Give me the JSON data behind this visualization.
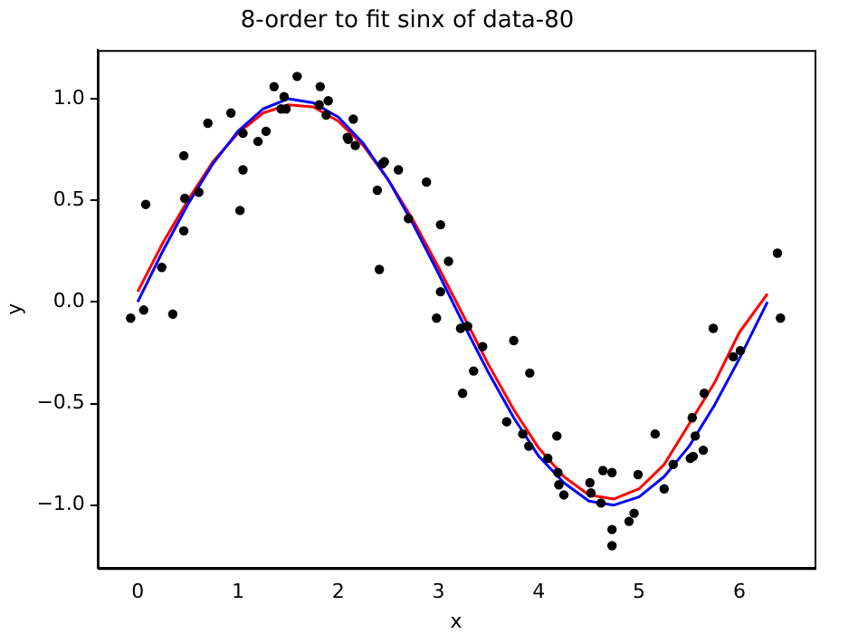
{
  "chart_data": {
    "type": "scatter",
    "title": "8-order to fit sinx of data-80",
    "xlabel": "x",
    "ylabel": "y",
    "xlim": [
      -0.4,
      6.75
    ],
    "ylim": [
      -1.31,
      1.24
    ],
    "xticks": [
      0,
      1,
      2,
      3,
      4,
      5,
      6
    ],
    "yticks": [
      {
        "value": -1,
        "label": "−1.0"
      },
      {
        "value": -0.5,
        "label": "−0.5"
      },
      {
        "value": 0,
        "label": "0.0"
      },
      {
        "value": 0.5,
        "label": "0.5"
      },
      {
        "value": 1,
        "label": "1.0"
      }
    ],
    "grid": false,
    "legend": false,
    "series": [
      {
        "marker": "circle",
        "color": "#000000",
        "x": [
          -0.07,
          0.06,
          0.08,
          0.24,
          0.35,
          0.46,
          0.46,
          0.47,
          0.61,
          0.7,
          0.93,
          1.02,
          1.05,
          1.05,
          1.2,
          1.28,
          1.36,
          1.43,
          1.46,
          1.48,
          1.59,
          1.81,
          1.82,
          1.88,
          1.9,
          2.09,
          2.1,
          2.15,
          2.17,
          2.39,
          2.41,
          2.44,
          2.46,
          2.6,
          2.7,
          2.88,
          2.98,
          3.02,
          3.02,
          3.1,
          3.22,
          3.29,
          3.35,
          3.44,
          3.24,
          3.68,
          3.75,
          3.84,
          3.9,
          3.91,
          4.09,
          4.18,
          4.19,
          4.2,
          4.25,
          4.51,
          4.52,
          4.62,
          4.64,
          4.73,
          4.73,
          4.73,
          4.9,
          4.95,
          4.99,
          5.16,
          5.25,
          5.34,
          5.51,
          5.53,
          5.54,
          5.56,
          5.64,
          5.65,
          5.74,
          5.94,
          6.01,
          6.38,
          6.41
        ],
        "values": [
          -0.08,
          -0.04,
          0.48,
          0.17,
          -0.06,
          0.72,
          0.35,
          0.51,
          0.54,
          0.88,
          0.93,
          0.45,
          0.65,
          0.83,
          0.79,
          0.84,
          1.06,
          0.95,
          1.01,
          0.95,
          1.11,
          0.97,
          1.06,
          0.92,
          0.99,
          0.81,
          0.8,
          0.9,
          0.77,
          0.55,
          0.16,
          0.68,
          0.69,
          0.65,
          0.41,
          0.59,
          -0.08,
          0.05,
          0.38,
          0.2,
          -0.13,
          -0.12,
          -0.34,
          -0.22,
          -0.45,
          -0.59,
          -0.19,
          -0.65,
          -0.71,
          -0.35,
          -0.77,
          -0.66,
          -0.84,
          -0.9,
          -0.95,
          -0.89,
          -0.94,
          -0.99,
          -0.83,
          -0.84,
          -1.12,
          -1.2,
          -1.08,
          -1.04,
          -0.85,
          -0.65,
          -0.92,
          -0.8,
          -0.77,
          -0.57,
          -0.76,
          -0.66,
          -0.73,
          -0.45,
          -0.13,
          -0.27,
          -0.24,
          0.24,
          -0.08
        ]
      },
      {
        "type": "line",
        "marker": "none",
        "color": "#0000ff",
        "x": [
          0,
          0.25,
          0.5,
          0.75,
          1,
          1.25,
          1.5,
          1.75,
          2,
          2.25,
          2.5,
          2.75,
          3,
          3.25,
          3.5,
          3.75,
          4,
          4.25,
          4.5,
          4.75,
          5,
          5.25,
          5.5,
          5.75,
          6,
          6.28
        ],
        "values": [
          0,
          0.25,
          0.48,
          0.68,
          0.84,
          0.95,
          1.0,
          0.98,
          0.91,
          0.78,
          0.6,
          0.38,
          0.14,
          -0.11,
          -0.35,
          -0.57,
          -0.76,
          -0.89,
          -0.98,
          -1.0,
          -0.96,
          -0.86,
          -0.71,
          -0.51,
          -0.28,
          0.0
        ]
      },
      {
        "type": "line",
        "marker": "none",
        "color": "#ff0000",
        "x": [
          0,
          0.25,
          0.5,
          0.75,
          1,
          1.25,
          1.5,
          1.75,
          2,
          2.25,
          2.5,
          2.75,
          3,
          3.25,
          3.5,
          3.75,
          4,
          4.25,
          4.5,
          4.75,
          5,
          5.25,
          5.5,
          5.75,
          6,
          6.28
        ],
        "values": [
          0.05,
          0.29,
          0.5,
          0.69,
          0.83,
          0.93,
          0.97,
          0.96,
          0.89,
          0.77,
          0.6,
          0.4,
          0.17,
          -0.07,
          -0.31,
          -0.53,
          -0.72,
          -0.86,
          -0.95,
          -0.97,
          -0.92,
          -0.8,
          -0.6,
          -0.4,
          -0.15,
          0.04
        ]
      }
    ]
  }
}
